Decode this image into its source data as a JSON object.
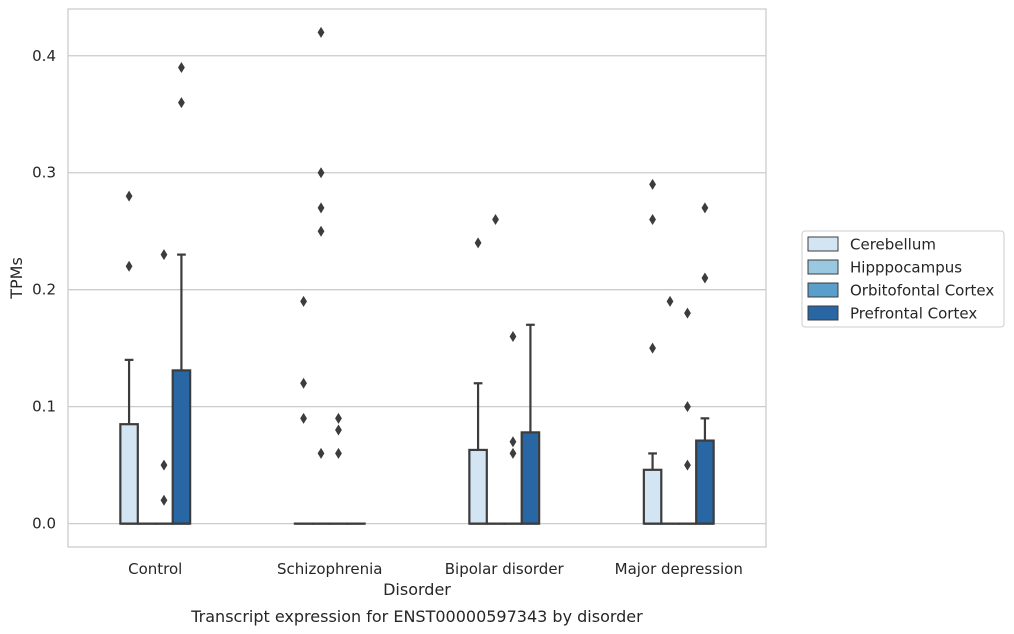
{
  "chart_data": {
    "type": "box",
    "title": "",
    "caption": "Transcript expression for ENST00000597343 by disorder",
    "xlabel": "Disorder",
    "ylabel": "TPMs",
    "ylim": [
      -0.02,
      0.44
    ],
    "yticks": [
      "0.0",
      "0.1",
      "0.2",
      "0.3",
      "0.4"
    ],
    "grid": "horizontal",
    "legend_position": "right",
    "categories": [
      "Control",
      "Schizophrenia",
      "Bipolar disorder",
      "Major depression"
    ],
    "series": [
      {
        "name": "Cerebellum",
        "color": "#d3e4f3",
        "boxes": [
          {
            "q1": 0,
            "median": 0,
            "q3": 0.085,
            "whisker_low": 0,
            "whisker_high": 0.14,
            "outliers": [
              0.22,
              0.28
            ]
          },
          {
            "q1": 0,
            "median": 0,
            "q3": 0,
            "whisker_low": 0,
            "whisker_high": 0,
            "outliers": [
              0.09,
              0.12,
              0.19
            ]
          },
          {
            "q1": 0,
            "median": 0,
            "q3": 0.063,
            "whisker_low": 0,
            "whisker_high": 0.12,
            "outliers": [
              0.24
            ]
          },
          {
            "q1": 0,
            "median": 0,
            "q3": 0.046,
            "whisker_low": 0,
            "whisker_high": 0.06,
            "outliers": [
              0.15,
              0.26,
              0.29
            ]
          }
        ]
      },
      {
        "name": "Hipppocampus",
        "color": "#9ac8e0",
        "boxes": [
          {
            "q1": 0,
            "median": 0,
            "q3": 0,
            "whisker_low": 0,
            "whisker_high": 0,
            "outliers": []
          },
          {
            "q1": 0,
            "median": 0,
            "q3": 0,
            "whisker_low": 0,
            "whisker_high": 0,
            "outliers": [
              0.06,
              0.25,
              0.27,
              0.3,
              0.42
            ]
          },
          {
            "q1": 0,
            "median": 0,
            "q3": 0,
            "whisker_low": 0,
            "whisker_high": 0,
            "outliers": [
              0.26
            ]
          },
          {
            "q1": 0,
            "median": 0,
            "q3": 0,
            "whisker_low": 0,
            "whisker_high": 0,
            "outliers": [
              0.19
            ]
          }
        ]
      },
      {
        "name": "Orbitofontal Cortex",
        "color": "#5a9ecb",
        "boxes": [
          {
            "q1": 0,
            "median": 0,
            "q3": 0,
            "whisker_low": 0,
            "whisker_high": 0,
            "outliers": [
              0.02,
              0.05,
              0.23
            ]
          },
          {
            "q1": 0,
            "median": 0,
            "q3": 0,
            "whisker_low": 0,
            "whisker_high": 0,
            "outliers": [
              0.06,
              0.08,
              0.09
            ]
          },
          {
            "q1": 0,
            "median": 0,
            "q3": 0,
            "whisker_low": 0,
            "whisker_high": 0,
            "outliers": [
              0.06,
              0.07,
              0.16
            ]
          },
          {
            "q1": 0,
            "median": 0,
            "q3": 0,
            "whisker_low": 0,
            "whisker_high": 0,
            "outliers": [
              0.05,
              0.1,
              0.18
            ]
          }
        ]
      },
      {
        "name": "Prefrontal Cortex",
        "color": "#2866a4",
        "boxes": [
          {
            "q1": 0,
            "median": 0,
            "q3": 0.131,
            "whisker_low": 0,
            "whisker_high": 0.23,
            "outliers": [
              0.36,
              0.39
            ]
          },
          {
            "q1": 0,
            "median": 0,
            "q3": 0,
            "whisker_low": 0,
            "whisker_high": 0,
            "outliers": []
          },
          {
            "q1": 0,
            "median": 0,
            "q3": 0.078,
            "whisker_low": 0,
            "whisker_high": 0.17,
            "outliers": []
          },
          {
            "q1": 0,
            "median": 0,
            "q3": 0.071,
            "whisker_low": 0,
            "whisker_high": 0.09,
            "outliers": [
              0.21,
              0.27
            ]
          }
        ]
      }
    ]
  }
}
